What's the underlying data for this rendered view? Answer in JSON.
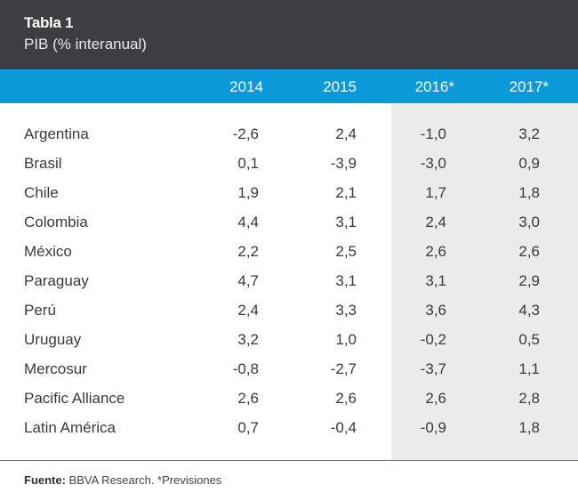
{
  "header": {
    "title": "Tabla 1",
    "subtitle": "PIB (% interanual)"
  },
  "columns": [
    "2014",
    "2015",
    "2016*",
    "2017*"
  ],
  "rows": [
    {
      "country": "Argentina",
      "values": [
        "-2,6",
        "2,4",
        "-1,0",
        "3,2"
      ]
    },
    {
      "country": "Brasil",
      "values": [
        "0,1",
        "-3,9",
        "-3,0",
        "0,9"
      ]
    },
    {
      "country": "Chile",
      "values": [
        "1,9",
        "2,1",
        "1,7",
        "1,8"
      ]
    },
    {
      "country": "Colombia",
      "values": [
        "4,4",
        "3,1",
        "2,4",
        "3,0"
      ]
    },
    {
      "country": "México",
      "values": [
        "2,2",
        "2,5",
        "2,6",
        "2,6"
      ]
    },
    {
      "country": "Paraguay",
      "values": [
        "4,7",
        "3,1",
        "3,1",
        "2,9"
      ]
    },
    {
      "country": "Perú",
      "values": [
        "2,4",
        "3,3",
        "3,6",
        "4,3"
      ]
    },
    {
      "country": "Uruguay",
      "values": [
        "3,2",
        "1,0",
        "-0,2",
        "0,5"
      ]
    },
    {
      "country": "Mercosur",
      "values": [
        "-0,8",
        "-2,7",
        "-3,7",
        "1,1"
      ]
    },
    {
      "country": "Pacific Alliance",
      "values": [
        "2,6",
        "2,6",
        "2,6",
        "2,8"
      ]
    },
    {
      "country": "Latin América",
      "values": [
        "0,7",
        "-0,4",
        "-0,9",
        "1,8"
      ]
    }
  ],
  "footer": {
    "source_label": "Fuente:",
    "source_text": " BBVA Research. *Previsiones"
  },
  "colors": {
    "header_bg": "#3d3e42",
    "column_header_bg": "#0a9ad9",
    "forecast_shade": "#ebebeb"
  }
}
